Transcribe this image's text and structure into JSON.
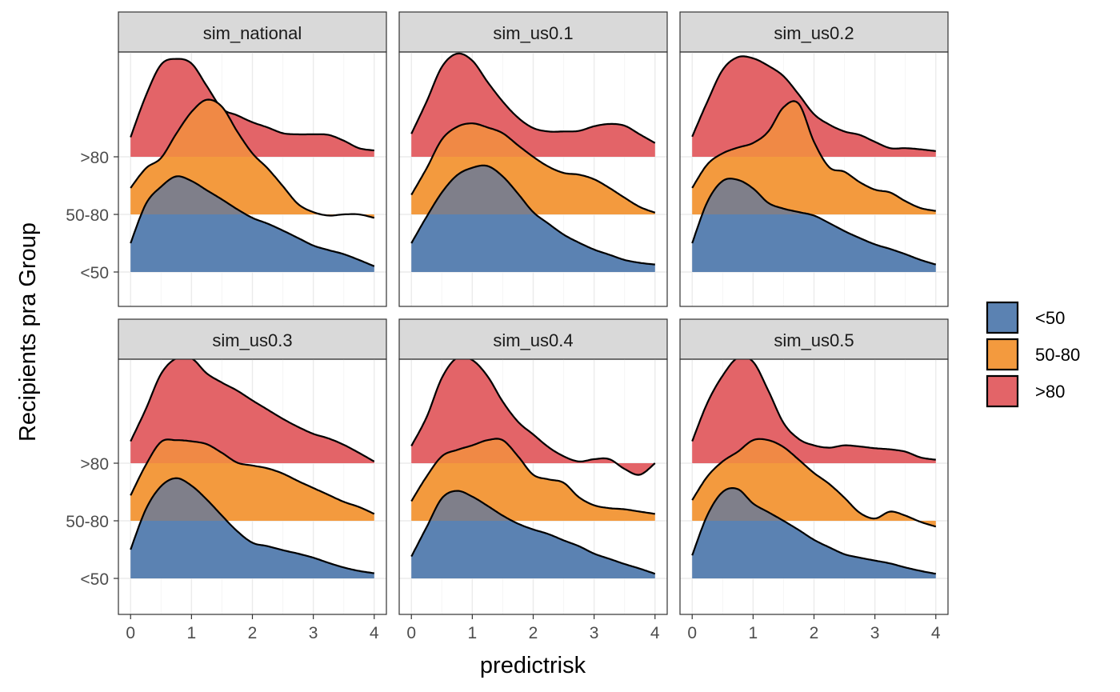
{
  "chart_data": {
    "type": "ridgeline",
    "xlabel": "predictrisk",
    "ylabel": "Recipients pra Group",
    "x_ticks": [
      0,
      1,
      2,
      3,
      4
    ],
    "xlim": [
      -0.2,
      4.2
    ],
    "categories": [
      "<50",
      "50-80",
      ">80"
    ],
    "legend": {
      "position": "right",
      "entries": [
        "<50",
        "50-80",
        ">80"
      ]
    },
    "colors": {
      "<50": "#5b82b2",
      "50-80": "#f39a3e",
      ">80": "#e36468",
      "overlap_low_mid": "#7f7f8a",
      "overlap_mid_high": "#f08945",
      "outline": "#000000",
      "strip_bg": "#d9d9d9",
      "grid_major": "#ebebeb",
      "grid_minor": "#f5f5f5"
    },
    "density_x": [
      0,
      0.25,
      0.5,
      0.75,
      1.0,
      1.25,
      1.5,
      1.75,
      2.0,
      2.25,
      2.5,
      2.75,
      3.0,
      3.25,
      3.5,
      3.75,
      4.0
    ],
    "panels": [
      {
        "title": "sim_national",
        "series": [
          {
            "name": "<50",
            "values": [
              0.5,
              1.18,
              1.48,
              1.66,
              1.58,
              1.42,
              1.26,
              1.09,
              0.94,
              0.84,
              0.72,
              0.59,
              0.46,
              0.38,
              0.31,
              0.21,
              0.1
            ]
          },
          {
            "name": "50-80",
            "values": [
              0.46,
              0.8,
              0.98,
              1.4,
              1.78,
              1.99,
              1.87,
              1.44,
              1.06,
              0.8,
              0.49,
              0.18,
              0.04,
              -0.02,
              0.0,
              0.0,
              -0.06
            ]
          },
          {
            "name": ">80",
            "values": [
              0.34,
              1.06,
              1.6,
              1.7,
              1.62,
              1.23,
              0.84,
              0.72,
              0.6,
              0.51,
              0.41,
              0.39,
              0.39,
              0.38,
              0.28,
              0.15,
              0.11
            ]
          }
        ]
      },
      {
        "title": "sim_us0.1",
        "series": [
          {
            "name": "<50",
            "values": [
              0.5,
              0.96,
              1.38,
              1.68,
              1.81,
              1.84,
              1.66,
              1.36,
              1.04,
              0.84,
              0.65,
              0.51,
              0.39,
              0.3,
              0.21,
              0.16,
              0.13
            ]
          },
          {
            "name": "50-80",
            "values": [
              0.34,
              0.8,
              1.3,
              1.52,
              1.58,
              1.51,
              1.41,
              1.2,
              1.0,
              0.83,
              0.72,
              0.69,
              0.61,
              0.46,
              0.29,
              0.13,
              0.03
            ]
          },
          {
            "name": ">80",
            "values": [
              0.4,
              0.96,
              1.56,
              1.79,
              1.67,
              1.3,
              0.96,
              0.68,
              0.5,
              0.44,
              0.44,
              0.45,
              0.53,
              0.57,
              0.54,
              0.39,
              0.24
            ]
          }
        ]
      },
      {
        "title": "sim_us0.2",
        "series": [
          {
            "name": "<50",
            "values": [
              0.5,
              1.22,
              1.58,
              1.6,
              1.45,
              1.2,
              1.1,
              1.04,
              0.98,
              0.85,
              0.71,
              0.59,
              0.48,
              0.4,
              0.31,
              0.21,
              0.13
            ]
          },
          {
            "name": "50-80",
            "values": [
              0.46,
              0.87,
              1.06,
              1.16,
              1.24,
              1.44,
              1.86,
              1.92,
              1.26,
              0.82,
              0.74,
              0.56,
              0.43,
              0.38,
              0.23,
              0.11,
              0.06
            ]
          },
          {
            "name": ">80",
            "values": [
              0.35,
              0.96,
              1.51,
              1.73,
              1.71,
              1.58,
              1.4,
              1.08,
              0.74,
              0.56,
              0.44,
              0.38,
              0.26,
              0.15,
              0.15,
              0.13,
              0.1
            ]
          }
        ]
      },
      {
        "title": "sim_us0.3",
        "series": [
          {
            "name": "<50",
            "values": [
              0.5,
              1.2,
              1.6,
              1.74,
              1.61,
              1.37,
              1.09,
              0.82,
              0.62,
              0.56,
              0.49,
              0.43,
              0.36,
              0.27,
              0.19,
              0.13,
              0.09
            ]
          },
          {
            "name": "50-80",
            "values": [
              0.44,
              0.97,
              1.37,
              1.4,
              1.38,
              1.33,
              1.18,
              1.01,
              0.96,
              0.91,
              0.82,
              0.69,
              0.57,
              0.45,
              0.33,
              0.24,
              0.12
            ]
          },
          {
            "name": ">80",
            "values": [
              0.38,
              0.94,
              1.55,
              1.82,
              1.82,
              1.56,
              1.4,
              1.26,
              1.09,
              0.93,
              0.77,
              0.63,
              0.51,
              0.43,
              0.32,
              0.18,
              0.03
            ]
          }
        ]
      },
      {
        "title": "sim_us0.4",
        "series": [
          {
            "name": "<50",
            "values": [
              0.38,
              0.89,
              1.39,
              1.52,
              1.42,
              1.26,
              1.09,
              0.95,
              0.85,
              0.77,
              0.66,
              0.56,
              0.43,
              0.34,
              0.25,
              0.17,
              0.08
            ]
          },
          {
            "name": "50-80",
            "values": [
              0.34,
              0.77,
              1.12,
              1.23,
              1.31,
              1.4,
              1.4,
              1.12,
              0.8,
              0.72,
              0.66,
              0.41,
              0.27,
              0.22,
              0.2,
              0.16,
              0.12
            ]
          },
          {
            "name": ">80",
            "values": [
              0.3,
              0.8,
              1.48,
              1.83,
              1.79,
              1.51,
              1.07,
              0.72,
              0.5,
              0.28,
              0.12,
              0.03,
              0.07,
              0.07,
              -0.1,
              -0.2,
              0.0
            ]
          }
        ]
      },
      {
        "title": "sim_us0.5",
        "series": [
          {
            "name": "<50",
            "values": [
              0.4,
              1.1,
              1.5,
              1.55,
              1.3,
              1.15,
              1.0,
              0.84,
              0.67,
              0.54,
              0.42,
              0.36,
              0.31,
              0.26,
              0.19,
              0.13,
              0.08
            ]
          },
          {
            "name": "50-80",
            "values": [
              0.36,
              0.77,
              1.03,
              1.2,
              1.4,
              1.4,
              1.28,
              1.06,
              0.83,
              0.64,
              0.4,
              0.14,
              0.04,
              0.16,
              0.09,
              -0.02,
              -0.1
            ]
          },
          {
            "name": ">80",
            "values": [
              0.38,
              1.05,
              1.52,
              1.83,
              1.76,
              1.26,
              0.7,
              0.42,
              0.31,
              0.27,
              0.31,
              0.29,
              0.26,
              0.24,
              0.2,
              0.1,
              0.06
            ]
          }
        ]
      }
    ]
  }
}
